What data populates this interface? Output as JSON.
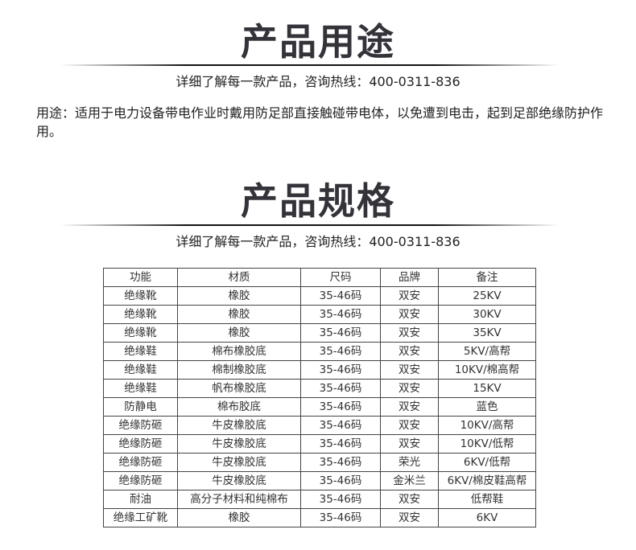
{
  "usage": {
    "title": "产品用途",
    "subtitle": "详细了解每一款产品，咨询热线：400-0311-836",
    "text": "用途：适用于电力设备带电作业时戴用防足部直接触碰带电体，以免遭到电击，起到足部绝缘防护作用。"
  },
  "spec": {
    "title": "产品规格",
    "subtitle": "详细了解每一款产品，咨询热线：400-0311-836",
    "headers": [
      "功能",
      "材质",
      "尺码",
      "品牌",
      "备注"
    ],
    "rows": [
      [
        "绝缘靴",
        "橡胶",
        "35-46码",
        "双安",
        "25KV"
      ],
      [
        "绝缘靴",
        "橡胶",
        "35-46码",
        "双安",
        "30KV"
      ],
      [
        "绝缘靴",
        "橡胶",
        "35-46码",
        "双安",
        "35KV"
      ],
      [
        "绝缘鞋",
        "棉布橡胶底",
        "35-46码",
        "双安",
        "5KV/高帮"
      ],
      [
        "绝缘鞋",
        "棉制橡胶底",
        "35-46码",
        "双安",
        "10KV/棉高帮"
      ],
      [
        "绝缘鞋",
        "帆布橡胶底",
        "35-46码",
        "双安",
        "15KV"
      ],
      [
        "防静电",
        "棉布胶底",
        "35-46码",
        "双安",
        "蓝色"
      ],
      [
        "绝缘防砸",
        "牛皮橡胶底",
        "35-46码",
        "双安",
        "10KV/高帮"
      ],
      [
        "绝缘防砸",
        "牛皮橡胶底",
        "35-46码",
        "双安",
        "10KV/低帮"
      ],
      [
        "绝缘防砸",
        "牛皮橡胶底",
        "35-46码",
        "荣光",
        "6KV/低帮"
      ],
      [
        "绝缘防砸",
        "牛皮橡胶底",
        "35-46码",
        "金米兰",
        "6KV/棉皮鞋高帮"
      ],
      [
        "耐油",
        "高分子材料和纯棉布",
        "35-46码",
        "双安",
        "低帮鞋"
      ],
      [
        "绝缘工矿靴",
        "橡胶",
        "35-46码",
        "双安",
        "6KV"
      ]
    ]
  }
}
